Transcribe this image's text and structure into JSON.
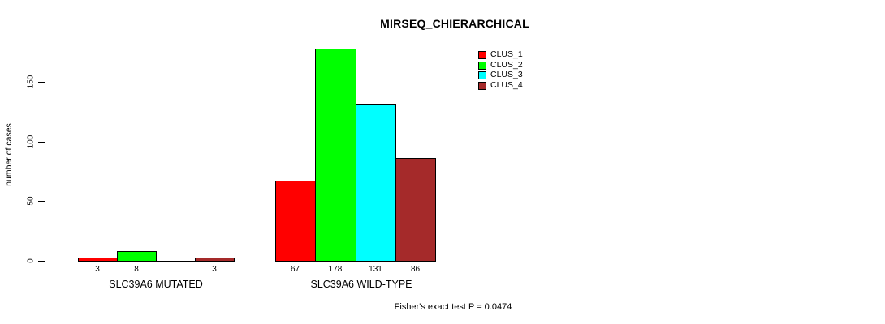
{
  "page": {
    "title": "MIRSEQ_CHIERARCHICAL",
    "ylabel": "number of cases",
    "annotation": "Fisher's exact test P = 0.0474"
  },
  "chart_data": {
    "type": "bar",
    "title": "MIRSEQ_CHIERARCHICAL",
    "xlabel": "",
    "ylabel": "number of cases",
    "categories": [
      "SLC39A6 MUTATED",
      "SLC39A6 WILD-TYPE"
    ],
    "series": [
      {
        "name": "CLUS_1",
        "color": "#ff0000",
        "values": [
          3,
          67
        ]
      },
      {
        "name": "CLUS_2",
        "color": "#00ff00",
        "values": [
          8,
          178
        ]
      },
      {
        "name": "CLUS_3",
        "color": "#00ffff",
        "values": [
          0,
          131
        ]
      },
      {
        "name": "CLUS_4",
        "color": "#a52a2a",
        "values": [
          3,
          86
        ]
      }
    ],
    "bar_value_labels": [
      [
        "3",
        "8",
        "",
        "3"
      ],
      [
        "67",
        "178",
        "131",
        "86"
      ]
    ],
    "yticks": [
      0,
      50,
      100,
      150
    ],
    "ylim": [
      0,
      178
    ],
    "grid": false,
    "legend": {
      "position": "top-right",
      "entries": [
        "CLUS_1",
        "CLUS_2",
        "CLUS_3",
        "CLUS_4"
      ]
    },
    "annotation": "Fisher's exact test P = 0.0474"
  }
}
